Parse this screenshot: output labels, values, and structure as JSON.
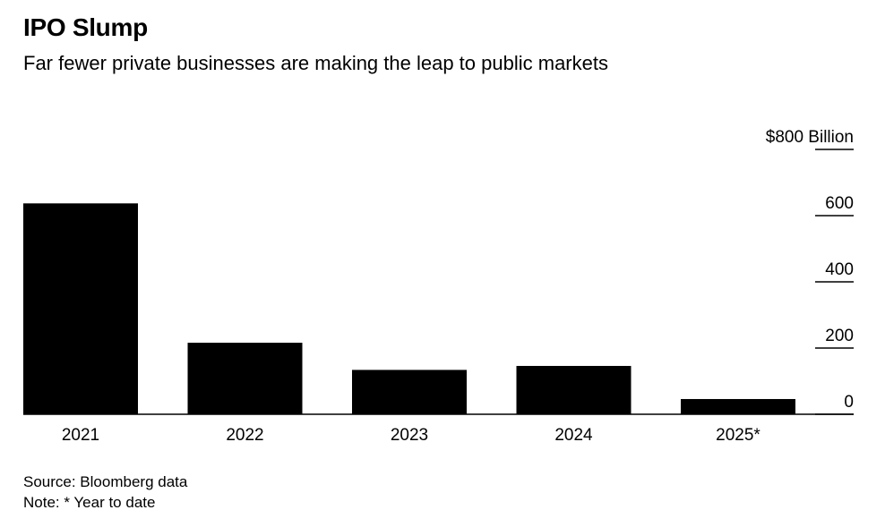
{
  "title": "IPO Slump",
  "subtitle": "Far fewer private businesses are making the leap to public markets",
  "chart_data": {
    "type": "bar",
    "categories": [
      "2021",
      "2022",
      "2023",
      "2024",
      "2025*"
    ],
    "values": [
      637,
      216,
      134,
      146,
      46
    ],
    "ylim": [
      0,
      800
    ],
    "y_ticks": [
      0,
      200,
      400,
      600,
      800
    ],
    "y_tick_labels": [
      "0",
      "200",
      "400",
      "600",
      "$800 Billion"
    ],
    "y_axis_position": "right",
    "bar_color": "#000000",
    "grid": false
  },
  "footer": {
    "source": "Source: Bloomberg data",
    "note": "Note: * Year to date"
  }
}
